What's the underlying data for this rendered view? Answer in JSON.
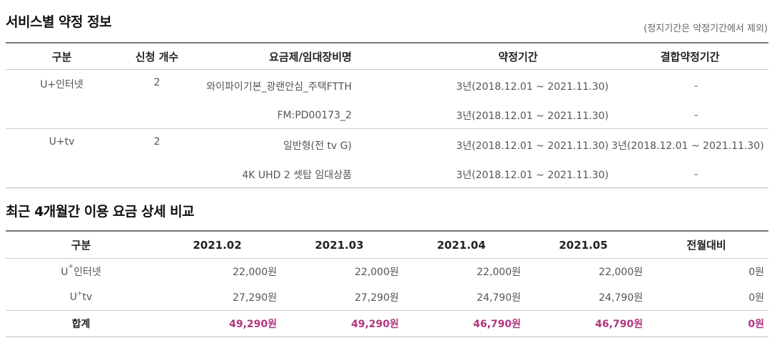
{
  "section1": {
    "title": "서비스별 약정 정보",
    "note": "(정지기간은 약정기간에서 제외)",
    "headers": [
      "구분",
      "신청 개수",
      "요금제/임대장비명",
      "약정기간",
      "결합약정기간"
    ],
    "rows": [
      {
        "category": "U+인터넷",
        "count": "2",
        "plan": "와이파이기본_광랜안심_주택FTTH",
        "period": "3년(2018.12.01 ~ 2021.11.30)",
        "combined": "-"
      },
      {
        "category": "",
        "count": "",
        "plan": "FM:PD00173_2",
        "period": "3년(2018.12.01 ~ 2021.11.30)",
        "combined": "-"
      },
      {
        "category": "U+tv",
        "count": "2",
        "plan": "일반형(전 tv G)",
        "period": "3년(2018.12.01 ~ 2021.11.30)",
        "combined": "3년(2018.12.01 ~ 2021.11.30)"
      },
      {
        "category": "",
        "count": "",
        "plan": "4K UHD 2 셋탑 임대상품",
        "period": "3년(2018.12.01 ~ 2021.11.30)",
        "combined": "-"
      }
    ]
  },
  "section2": {
    "title": "최근 4개월간 이용 요금 상세 비교",
    "headers": [
      "구분",
      "2021.02",
      "2021.03",
      "2021.04",
      "2021.05",
      "전월대비"
    ],
    "rows": [
      {
        "prefix": "U",
        "sup": "+",
        "name": "인터넷",
        "values": [
          "22,000원",
          "22,000원",
          "22,000원",
          "22,000원",
          "0원"
        ]
      },
      {
        "prefix": "U",
        "sup": "+",
        "name": "tv",
        "values": [
          "27,290원",
          "27,290원",
          "24,790원",
          "24,790원",
          "0원"
        ]
      }
    ],
    "total": {
      "label": "합계",
      "values": [
        "49,290원",
        "49,290원",
        "46,790원",
        "46,790원",
        "0원"
      ]
    },
    "accent_color": "#b0367f"
  }
}
